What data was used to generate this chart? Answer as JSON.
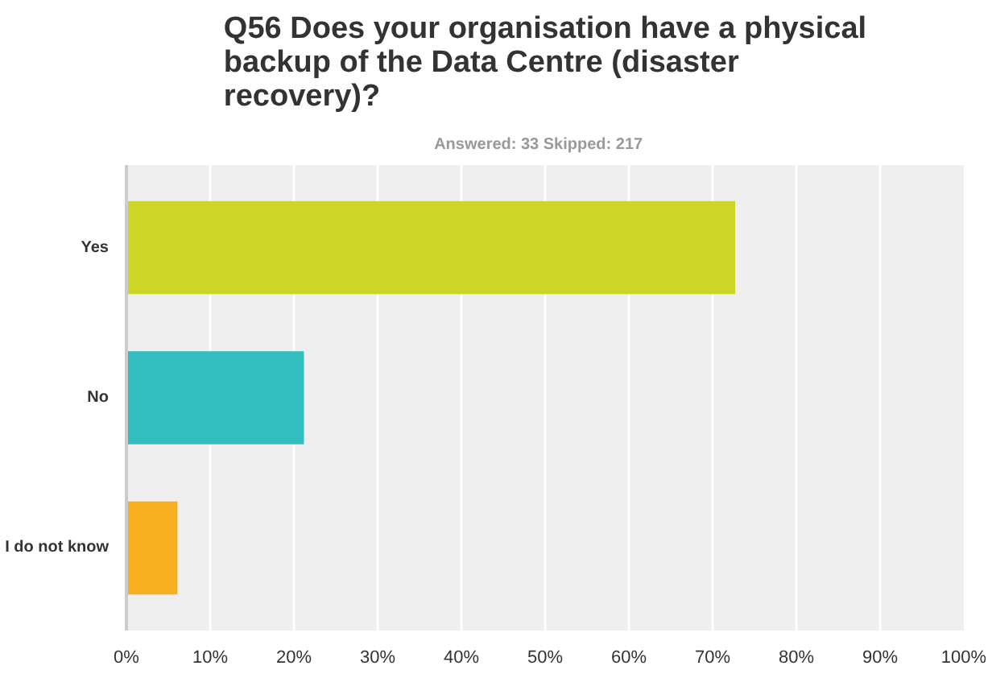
{
  "chart_data": {
    "type": "bar",
    "orientation": "horizontal",
    "title": "Q56 Does your organisation have a physical backup of the Data Centre (disaster recovery)?",
    "subtitle": "Answered: 33    Skipped: 217",
    "categories": [
      "Yes",
      "No",
      "I do not know"
    ],
    "values": [
      72.7,
      21.2,
      6.1
    ],
    "colors": [
      "#cdd527",
      "#33bdbf",
      "#f8ae21"
    ],
    "xlim": [
      0,
      100
    ],
    "xticks": [
      {
        "value": 0,
        "label": "0%"
      },
      {
        "value": 10,
        "label": "10%"
      },
      {
        "value": 20,
        "label": "20%"
      },
      {
        "value": 30,
        "label": "30%"
      },
      {
        "value": 40,
        "label": "40%"
      },
      {
        "value": 50,
        "label": "50%"
      },
      {
        "value": 60,
        "label": "60%"
      },
      {
        "value": 70,
        "label": "70%"
      },
      {
        "value": 80,
        "label": "80%"
      },
      {
        "value": 90,
        "label": "90%"
      },
      {
        "value": 100,
        "label": "100%"
      }
    ],
    "grid": "x"
  }
}
